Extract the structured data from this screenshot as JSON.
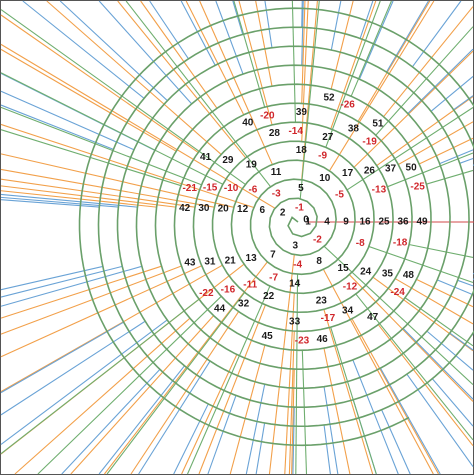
{
  "diagram": {
    "colors": {
      "positive_ray": "#f2a04a",
      "square_ray": "#6aa3d6",
      "negative_ray": "#6fae6f",
      "zero_ray": "#d04a4a",
      "spiral": "#6aa06a",
      "positive_text": "#1a1a1a",
      "negative_text": "#d0262b",
      "frame": "#555555"
    },
    "positive_numbers": [
      "0",
      "1",
      "2",
      "3",
      "4",
      "5",
      "6",
      "7",
      "8",
      "9",
      "10",
      "11",
      "12",
      "13",
      "14",
      "15",
      "16",
      "17",
      "18",
      "19",
      "20",
      "21",
      "22",
      "23",
      "24",
      "25",
      "26",
      "27",
      "28",
      "29",
      "30",
      "31",
      "32",
      "33",
      "34",
      "35",
      "36",
      "37",
      "38",
      "39",
      "40",
      "41",
      "42",
      "43",
      "44",
      "45",
      "46",
      "47",
      "48",
      "49",
      "50",
      "51",
      "52"
    ],
    "negative_numbers": [
      "-1",
      "-2",
      "-3",
      "-4",
      "-5",
      "-6",
      "-7",
      "-8",
      "-9",
      "-10",
      "-11",
      "-12",
      "-13",
      "-14",
      "-15",
      "-16",
      "-17",
      "-18",
      "-19",
      "-20",
      "-21",
      "-22",
      "-23",
      "-24",
      "-25",
      "-26"
    ]
  }
}
